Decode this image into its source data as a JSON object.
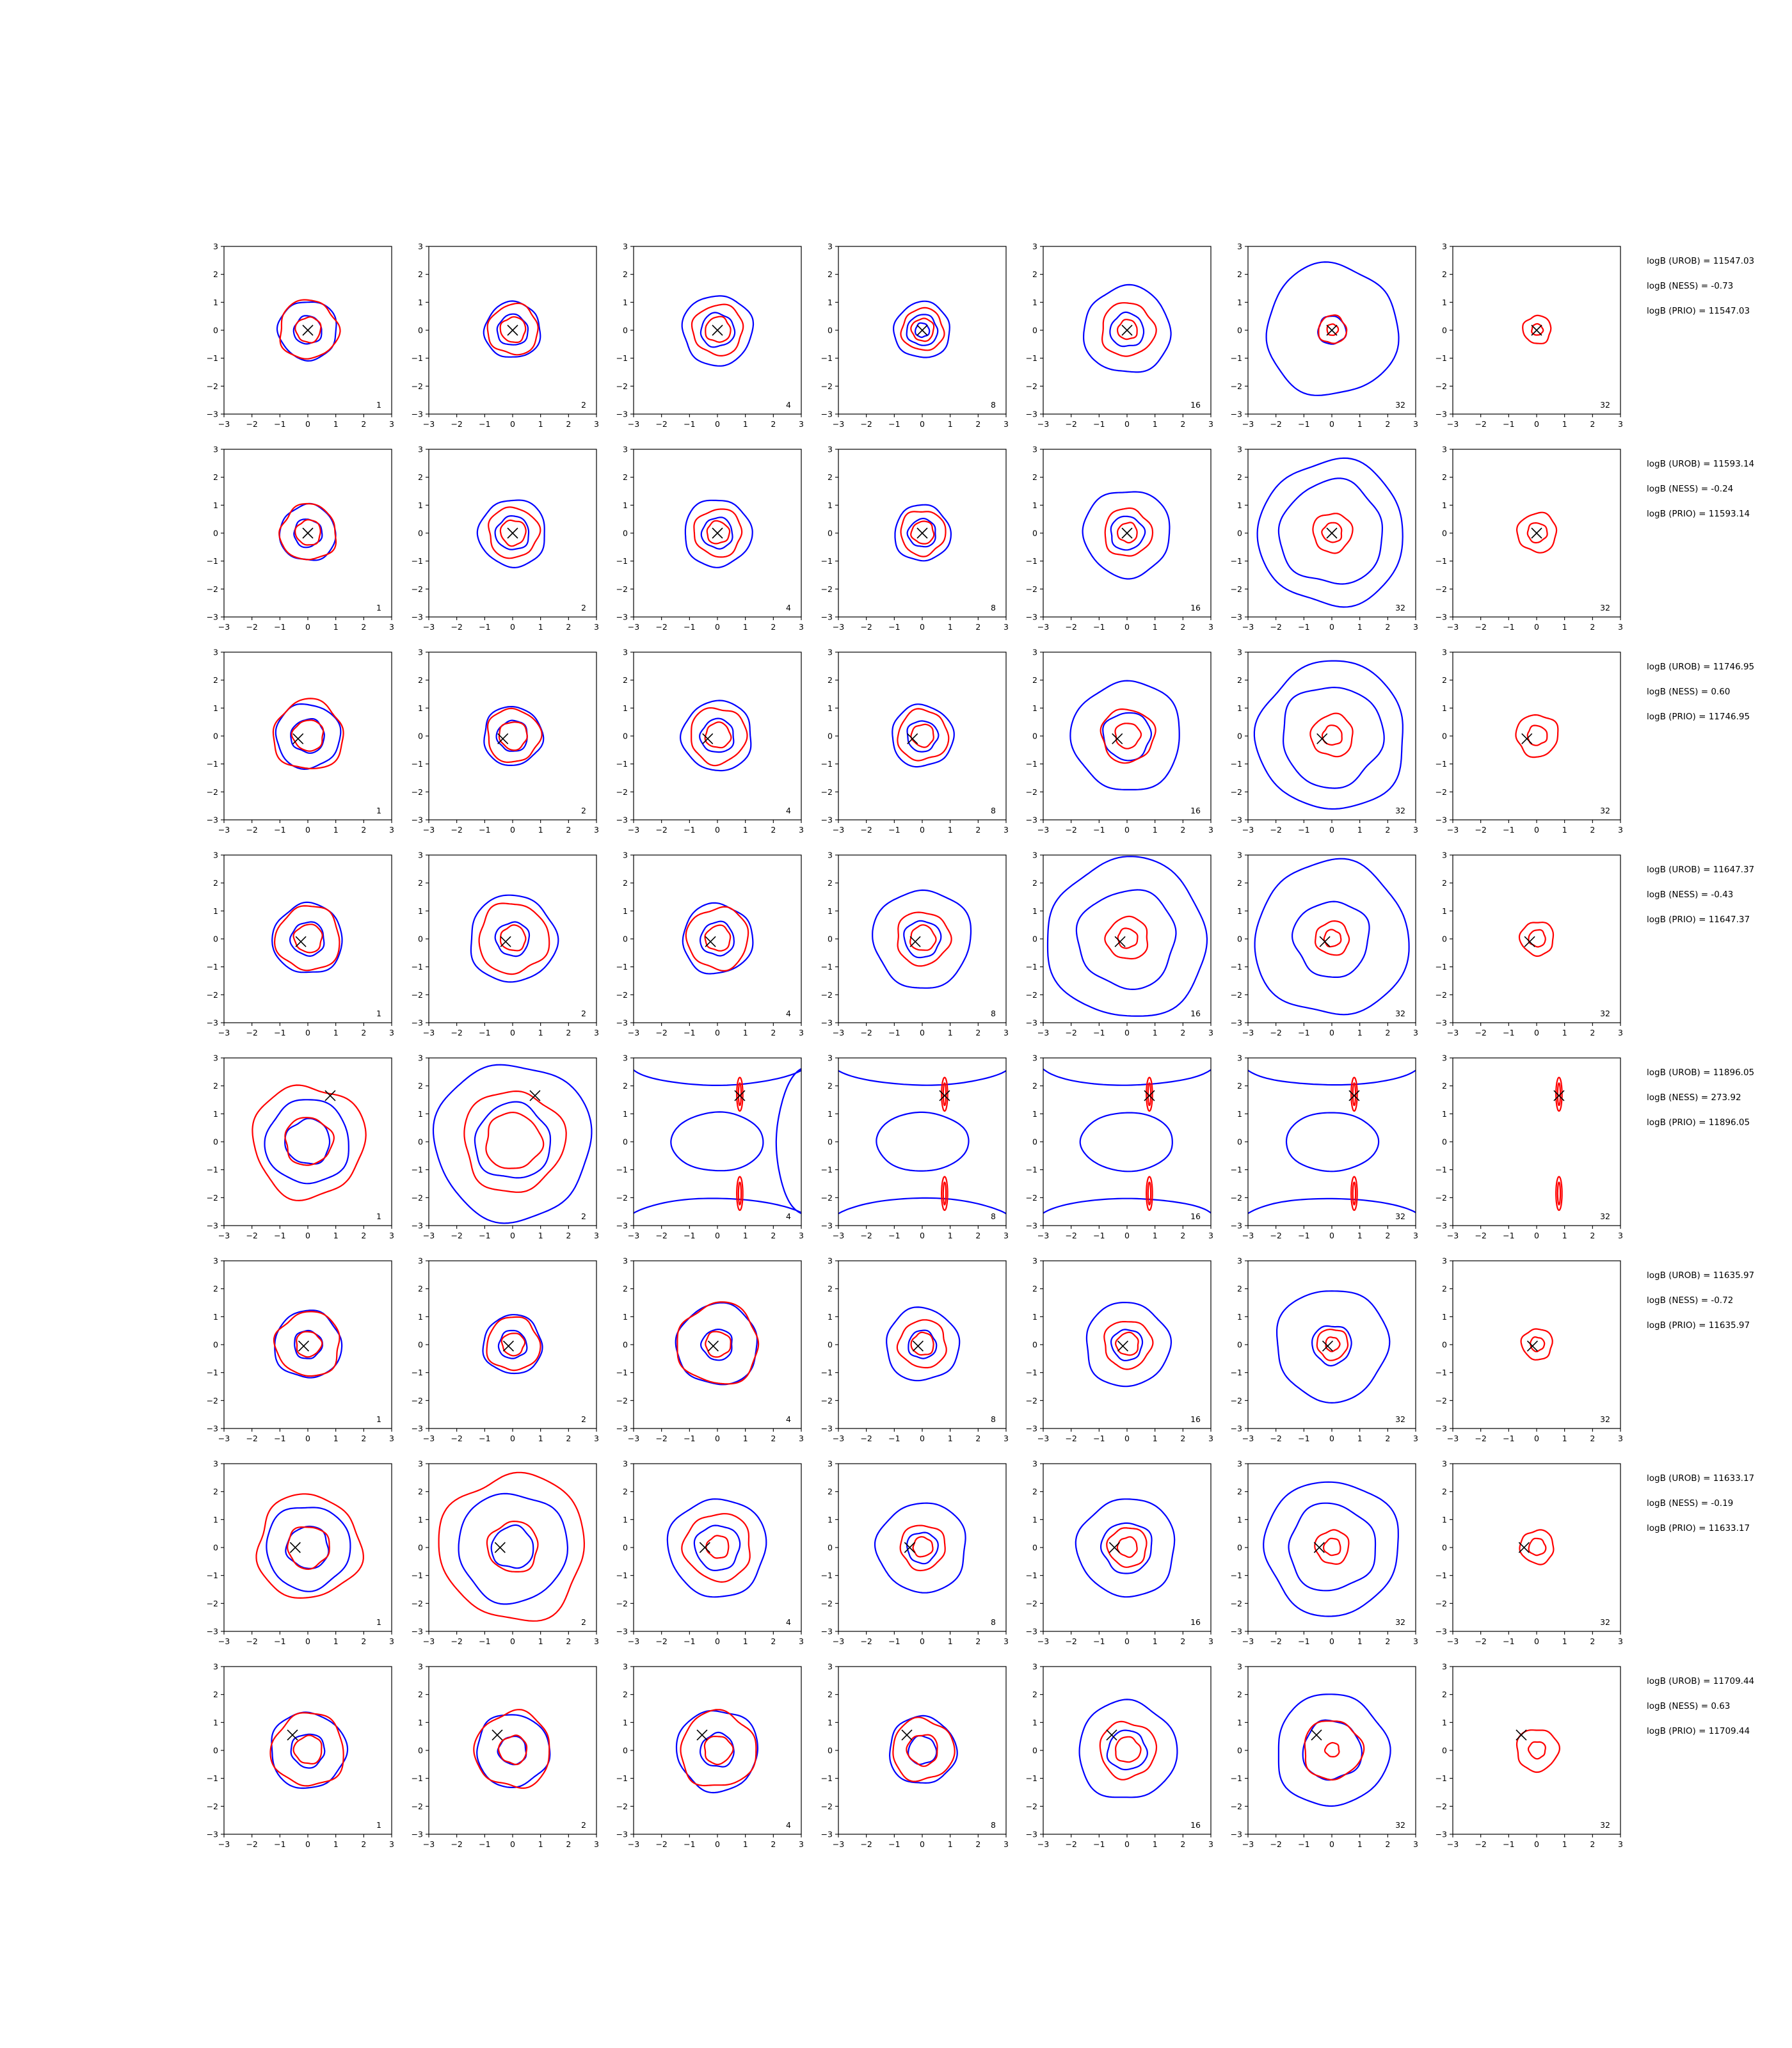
{
  "colors": {
    "blue": "#0000ff",
    "red": "#ff0000",
    "marker": "#000000"
  },
  "chart_data": {
    "type": "contour-grid",
    "rows": 8,
    "cols": 7,
    "xlim": [
      -3,
      3
    ],
    "ylim": [
      -3,
      3
    ],
    "ticks": [
      "−3",
      "−2",
      "−1",
      "0",
      "1",
      "2",
      "3"
    ],
    "tick_values": [
      -3,
      -2,
      -1,
      0,
      1,
      2,
      3
    ],
    "column_labels": [
      "1",
      "2",
      "4",
      "8",
      "16",
      "32",
      "32"
    ],
    "grid": false,
    "panel_rows": [
      {
        "marker": [
          0.0,
          0.0
        ],
        "stats": [
          "logB (UROB) = 11547.03",
          "logB (NESS) = -0.73",
          "logB (PRIO) = 11547.03"
        ],
        "blue_radii": [
          [
            1.05,
            0.5
          ],
          [
            1.0,
            0.55
          ],
          [
            1.25,
            0.6
          ],
          [
            1.0,
            0.55,
            0.25
          ],
          [
            1.55,
            0.6
          ],
          [
            2.35,
            0.5
          ],
          []
        ],
        "red_radii": [
          [
            1.05,
            0.45
          ],
          [
            0.9,
            0.45
          ],
          [
            0.9,
            0.45
          ],
          [
            0.75,
            0.4
          ],
          [
            0.95,
            0.35
          ],
          [
            0.5,
            0.2
          ],
          [
            0.5,
            0.2
          ]
        ]
      },
      {
        "marker": [
          0.0,
          0.0
        ],
        "stats": [
          "logB (UROB) = 11593.14",
          "logB (NESS) = -0.24",
          "logB (PRIO) = 11593.14"
        ],
        "blue_radii": [
          [
            1.0,
            0.5
          ],
          [
            1.2,
            0.6
          ],
          [
            1.2,
            0.55
          ],
          [
            1.0,
            0.5
          ],
          [
            1.55,
            0.6
          ],
          [
            2.6,
            1.85
          ],
          []
        ],
        "red_radii": [
          [
            1.0,
            0.45
          ],
          [
            0.9,
            0.45
          ],
          [
            0.85,
            0.4
          ],
          [
            0.8,
            0.4
          ],
          [
            0.85,
            0.35
          ],
          [
            0.7,
            0.35
          ],
          [
            0.7,
            0.35
          ]
        ]
      },
      {
        "marker": [
          -0.35,
          -0.1
        ],
        "stats": [
          "logB (UROB) = 11746.95",
          "logB (NESS) = 0.60",
          "logB (PRIO) = 11746.95"
        ],
        "blue_radii": [
          [
            1.15,
            0.6
          ],
          [
            1.05,
            0.55
          ],
          [
            1.25,
            0.6
          ],
          [
            1.1,
            0.55
          ],
          [
            1.95,
            0.85
          ],
          [
            2.65,
            1.8
          ],
          []
        ],
        "red_radii": [
          [
            1.25,
            0.55
          ],
          [
            0.95,
            0.5
          ],
          [
            1.0,
            0.45
          ],
          [
            0.9,
            0.4
          ],
          [
            0.95,
            0.45
          ],
          [
            0.75,
            0.35
          ],
          [
            0.75,
            0.35
          ]
        ]
      },
      {
        "marker": [
          -0.25,
          -0.1
        ],
        "stats": [
          "logB (UROB) = 11647.37",
          "logB (NESS) = -0.43",
          "logB (PRIO) = 11647.37"
        ],
        "blue_radii": [
          [
            1.25,
            0.6
          ],
          [
            1.55,
            0.6
          ],
          [
            1.25,
            0.6
          ],
          [
            1.75,
            0.65
          ],
          [
            2.85,
            1.75
          ],
          [
            2.75,
            1.35
          ],
          []
        ],
        "red_radii": [
          [
            1.15,
            0.5
          ],
          [
            1.25,
            0.45
          ],
          [
            1.1,
            0.45
          ],
          [
            0.95,
            0.45
          ],
          [
            0.75,
            0.35
          ],
          [
            0.6,
            0.3
          ],
          [
            0.6,
            0.3
          ]
        ]
      },
      {
        "marker": [
          0.8,
          1.65
        ],
        "stats": [
          "logB (UROB) = 11896.05",
          "logB (NESS) = 273.92",
          "logB (PRIO) = 11896.05"
        ],
        "blue_radii": [
          [
            1.5,
            0.8
          ],
          [
            2.8,
            1.35
          ],
          [],
          [],
          [],
          [],
          []
        ],
        "red_radii": [
          [
            2.0,
            0.85
          ],
          [
            1.8,
            1.0
          ],
          [],
          [],
          [],
          [],
          []
        ]
      },
      {
        "marker": [
          -0.15,
          -0.05
        ],
        "stats": [
          "logB (UROB) = 11635.97",
          "logB (NESS) = -0.72",
          "logB (PRIO) = 11635.97"
        ],
        "blue_radii": [
          [
            1.2,
            0.5
          ],
          [
            1.05,
            0.5
          ],
          [
            1.45,
            0.55
          ],
          [
            1.3,
            0.5
          ],
          [
            1.5,
            0.55
          ],
          [
            2.0,
            0.7
          ],
          []
        ],
        "red_radii": [
          [
            1.15,
            0.45
          ],
          [
            0.95,
            0.4
          ],
          [
            1.45,
            0.45
          ],
          [
            0.85,
            0.4
          ],
          [
            0.85,
            0.4
          ],
          [
            0.55,
            0.25
          ],
          [
            0.55,
            0.25
          ]
        ]
      },
      {
        "marker": [
          -0.45,
          0.0
        ],
        "stats": [
          "logB (UROB) = 11633.17",
          "logB (NESS) = -0.19",
          "logB (PRIO) = 11633.17"
        ],
        "blue_radii": [
          [
            1.5,
            0.75
          ],
          [
            1.95,
            0.75
          ],
          [
            1.75,
            0.8
          ],
          [
            1.6,
            0.55
          ],
          [
            1.75,
            0.9
          ],
          [
            2.4,
            1.55
          ],
          []
        ],
        "red_radii": [
          [
            1.85,
            0.75
          ],
          [
            2.6,
            0.9
          ],
          [
            1.2,
            0.4
          ],
          [
            0.8,
            0.35
          ],
          [
            0.7,
            0.35
          ],
          [
            0.6,
            0.3
          ],
          [
            0.6,
            0.3
          ]
        ]
      },
      {
        "marker": [
          -0.55,
          0.55
        ],
        "stats": [
          "logB (UROB) = 11709.44",
          "logB (NESS) = 0.63",
          "logB (PRIO) = 11709.44"
        ],
        "blue_radii": [
          [
            1.35,
            0.6
          ],
          [
            1.3,
            0.5
          ],
          [
            1.45,
            0.6
          ],
          [
            1.2,
            0.5
          ],
          [
            1.75,
            0.7
          ],
          [
            2.0,
            1.05
          ],
          []
        ],
        "red_radii": [
          [
            1.3,
            0.5
          ],
          [
            1.35,
            0.5
          ],
          [
            1.35,
            0.5
          ],
          [
            1.1,
            0.55
          ],
          [
            1.0,
            0.45
          ],
          [
            1.05,
            0.25
          ],
          [
            0.75,
            0.3
          ]
        ]
      }
    ]
  }
}
